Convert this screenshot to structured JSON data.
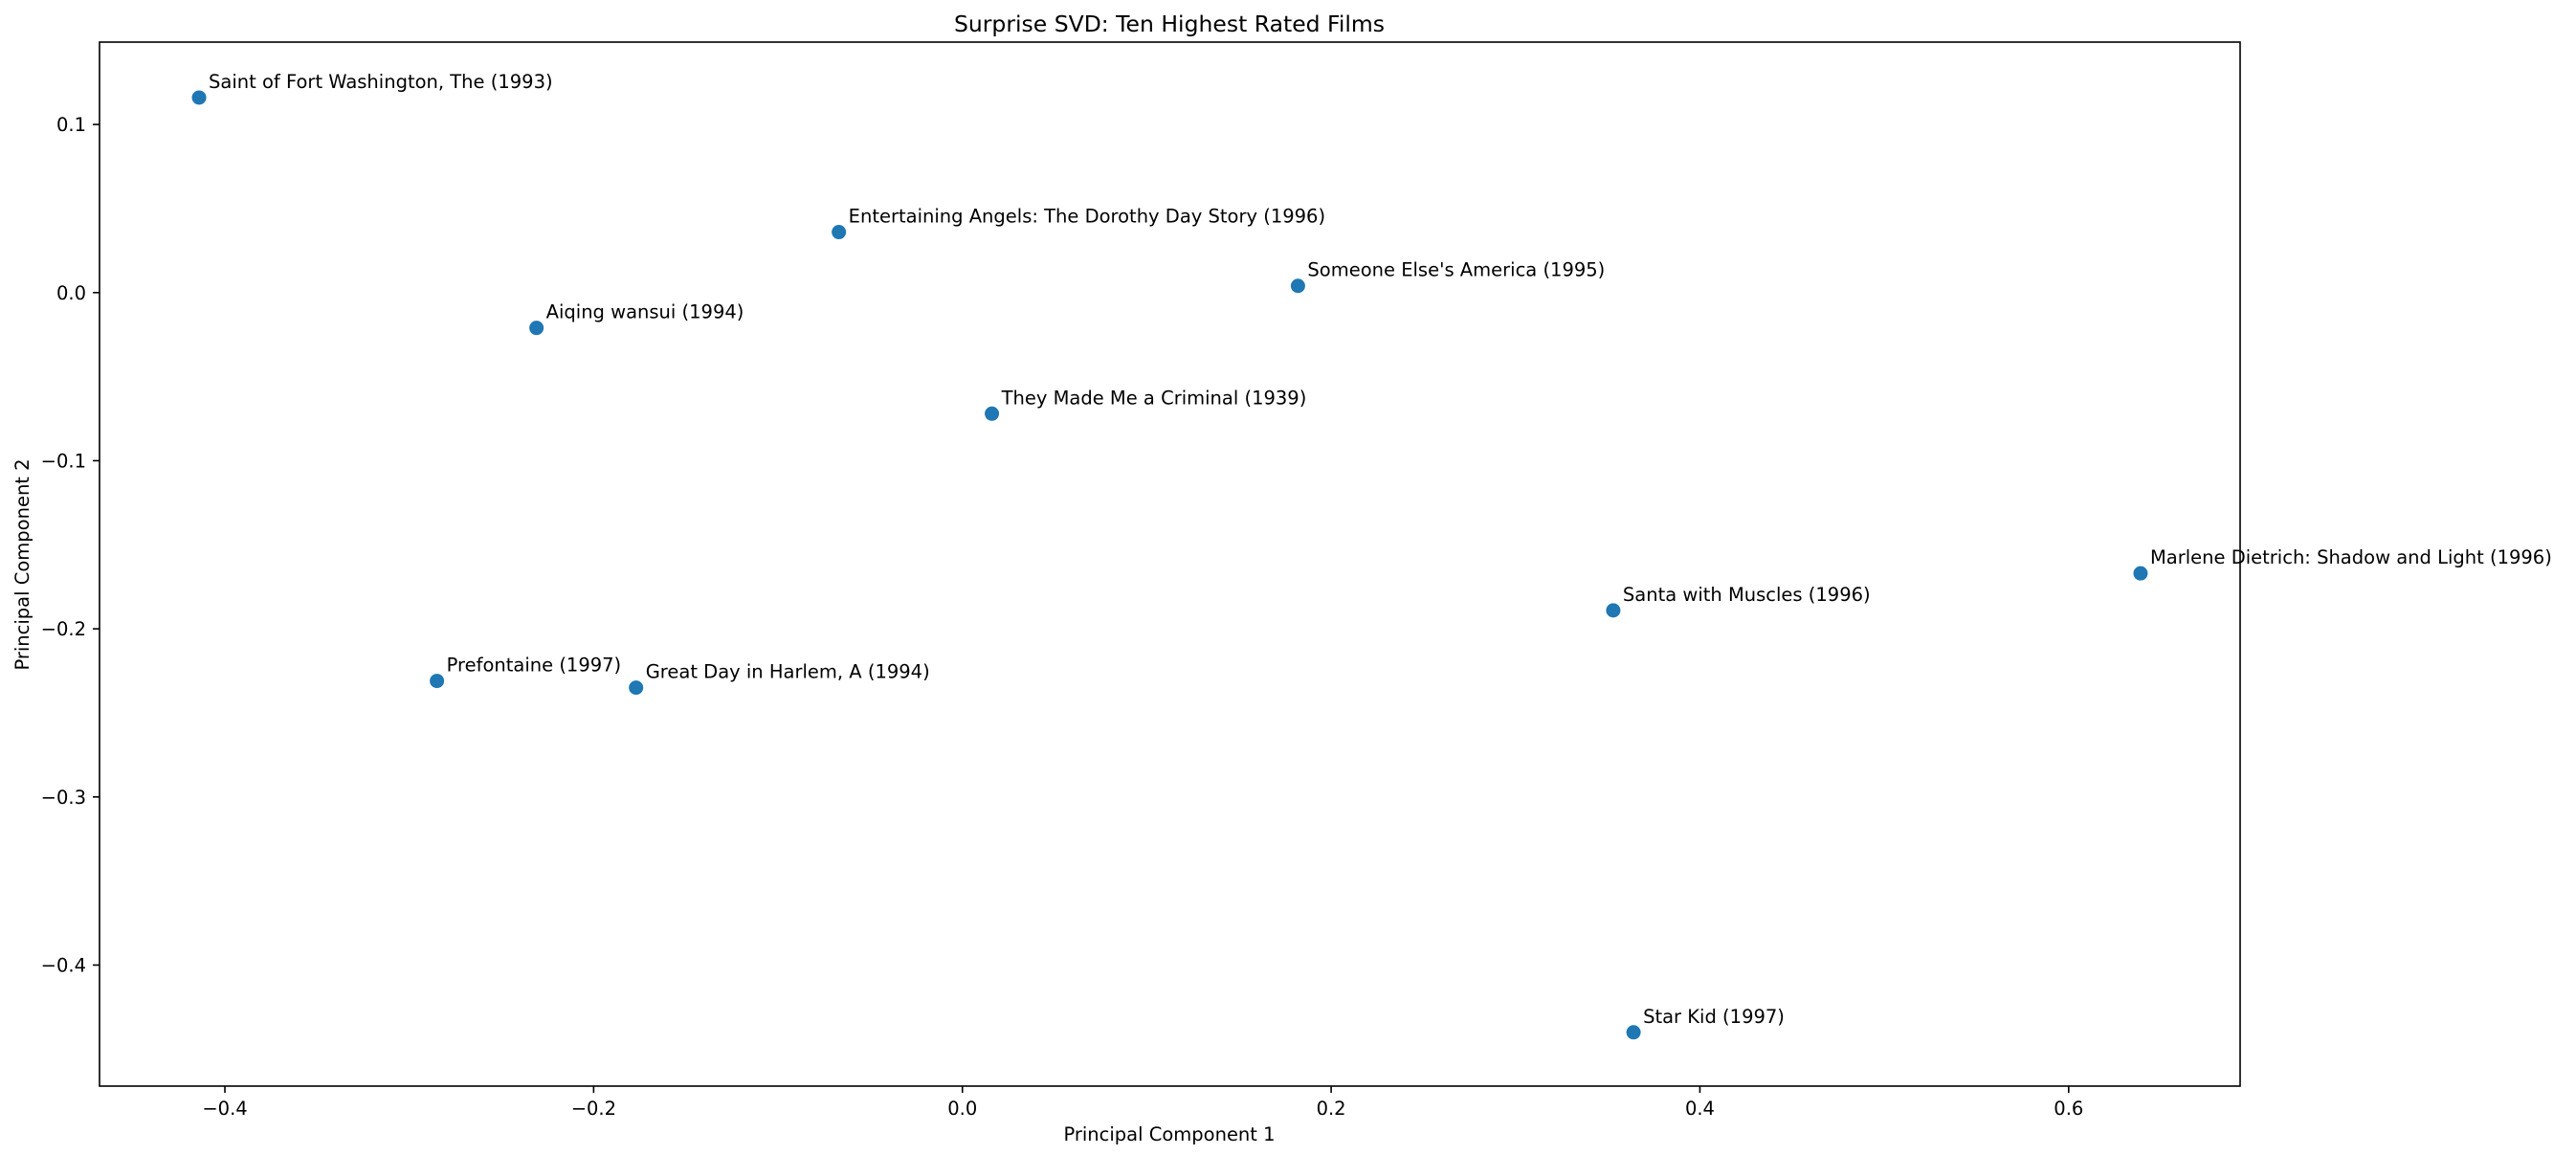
{
  "chart_data": {
    "type": "scatter",
    "title": "Surprise SVD: Ten Highest Rated Films",
    "xlabel": "Principal Component 1",
    "ylabel": "Principal Component 2",
    "xlim": [
      -0.468,
      0.693
    ],
    "ylim": [
      -0.472,
      0.149
    ],
    "xticks": [
      -0.4,
      -0.2,
      0.0,
      0.2,
      0.4,
      0.6
    ],
    "xtick_labels": [
      "−0.4",
      "−0.2",
      "0.0",
      "0.2",
      "0.4",
      "0.6"
    ],
    "yticks": [
      0.1,
      0.0,
      -0.1,
      -0.2,
      -0.3,
      -0.4
    ],
    "ytick_labels": [
      "0.1",
      "0.0",
      "−0.1",
      "−0.2",
      "−0.3",
      "−0.4"
    ],
    "grid": false,
    "marker_color": "#1f77b4",
    "points": [
      {
        "label": "Saint of Fort Washington, The (1993)",
        "x": -0.414,
        "y": 0.116
      },
      {
        "label": "Entertaining Angels: The Dorothy Day Story (1996)",
        "x": -0.067,
        "y": 0.036
      },
      {
        "label": "Someone Else's America (1995)",
        "x": 0.182,
        "y": 0.004
      },
      {
        "label": "Aiqing wansui (1994)",
        "x": -0.231,
        "y": -0.021
      },
      {
        "label": "They Made Me a Criminal (1939)",
        "x": 0.016,
        "y": -0.072
      },
      {
        "label": "Marlene Dietrich: Shadow and Light (1996)",
        "x": 0.639,
        "y": -0.167
      },
      {
        "label": "Santa with Muscles (1996)",
        "x": 0.353,
        "y": -0.189
      },
      {
        "label": "Prefontaine (1997)",
        "x": -0.285,
        "y": -0.231
      },
      {
        "label": "Great Day in Harlem, A (1994)",
        "x": -0.177,
        "y": -0.235
      },
      {
        "label": "Star Kid (1997)",
        "x": 0.364,
        "y": -0.44
      }
    ]
  }
}
